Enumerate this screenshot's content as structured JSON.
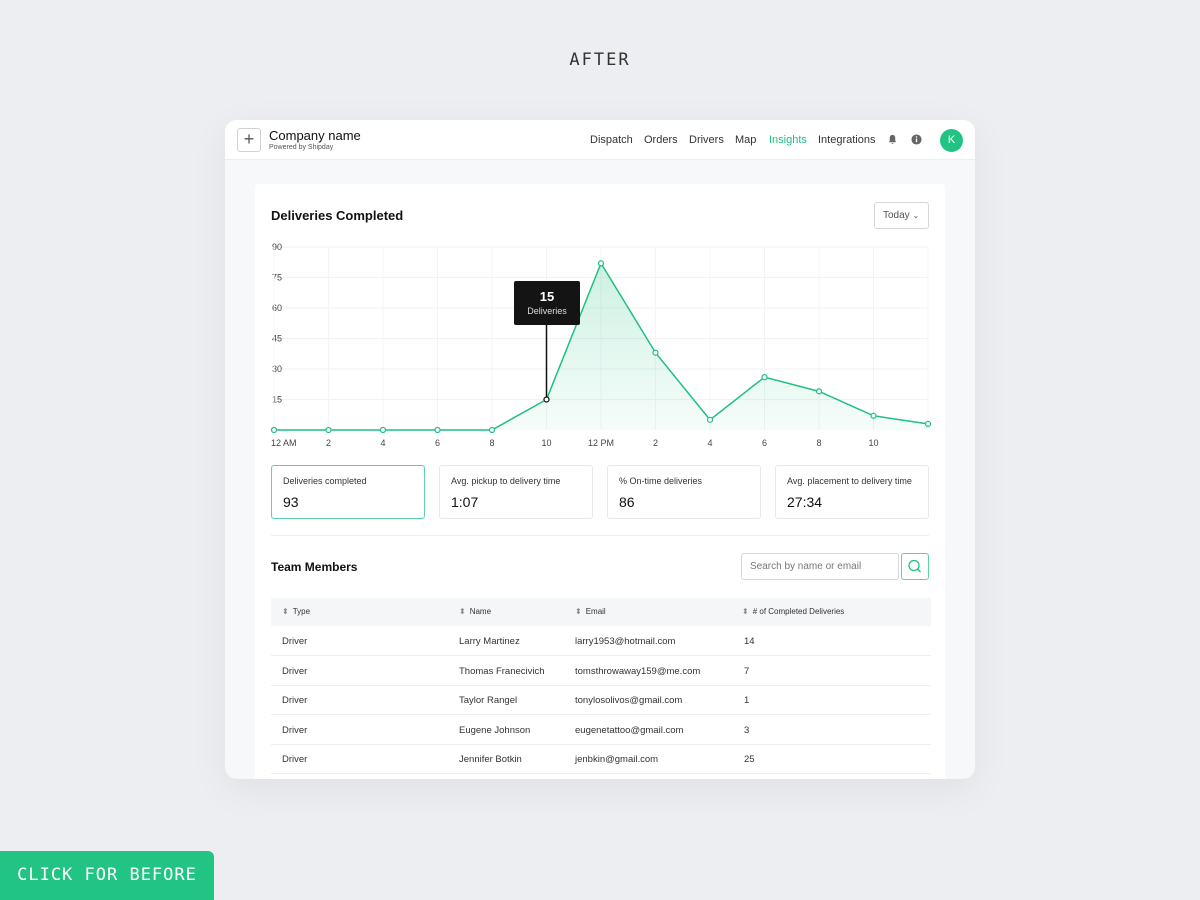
{
  "page_heading": "AFTER",
  "before_button": "CLICK FOR BEFORE",
  "header": {
    "company": "Company name",
    "powered": "Powered by Shipday",
    "nav": [
      "Dispatch",
      "Orders",
      "Drivers",
      "Map",
      "Insights",
      "Integrations"
    ],
    "active": "Insights",
    "avatar": "K",
    "icons": [
      "bell-icon",
      "info-icon"
    ]
  },
  "chart_card": {
    "title": "Deliveries Completed",
    "range": "Today",
    "tooltip": {
      "value": "15",
      "label": "Deliveries"
    }
  },
  "chart_data": {
    "type": "area",
    "x": [
      "12 AM",
      "2",
      "4",
      "6",
      "8",
      "10",
      "12 PM",
      "2",
      "4",
      "6",
      "8",
      "10",
      ""
    ],
    "values": [
      0,
      0,
      0,
      0,
      0,
      15,
      82,
      38,
      5,
      26,
      19,
      7,
      3
    ],
    "yticks": [
      15,
      30,
      45,
      60,
      75,
      90
    ],
    "ylim": [
      0,
      90
    ],
    "grid": true,
    "color": "#1fbf80"
  },
  "stats": [
    {
      "label": "Deliveries completed",
      "value": "93"
    },
    {
      "label": "Avg. pickup to delivery time",
      "value": "1:07"
    },
    {
      "label": "% On-time deliveries",
      "value": "86"
    },
    {
      "label": "Avg. placement to delivery time",
      "value": "27:34"
    }
  ],
  "team": {
    "title": "Team Members",
    "search_placeholder": "Search by name or email",
    "columns": [
      "Type",
      "Name",
      "Email",
      "# of Completed Deliveries"
    ],
    "rows": [
      [
        "Driver",
        "Larry Martinez",
        "larry1953@hotmail.com",
        "14"
      ],
      [
        "Driver",
        "Thomas Franecivich",
        "tomsthrowaway159@me.com",
        "7"
      ],
      [
        "Driver",
        "Taylor Rangel",
        "tonylosolivos@gmail.com",
        "1"
      ],
      [
        "Driver",
        "Eugene Johnson",
        "eugenetattoo@gmail.com",
        "3"
      ],
      [
        "Driver",
        "Jennifer Botkin",
        "jenbkin@gmail.com",
        "25"
      ]
    ]
  }
}
